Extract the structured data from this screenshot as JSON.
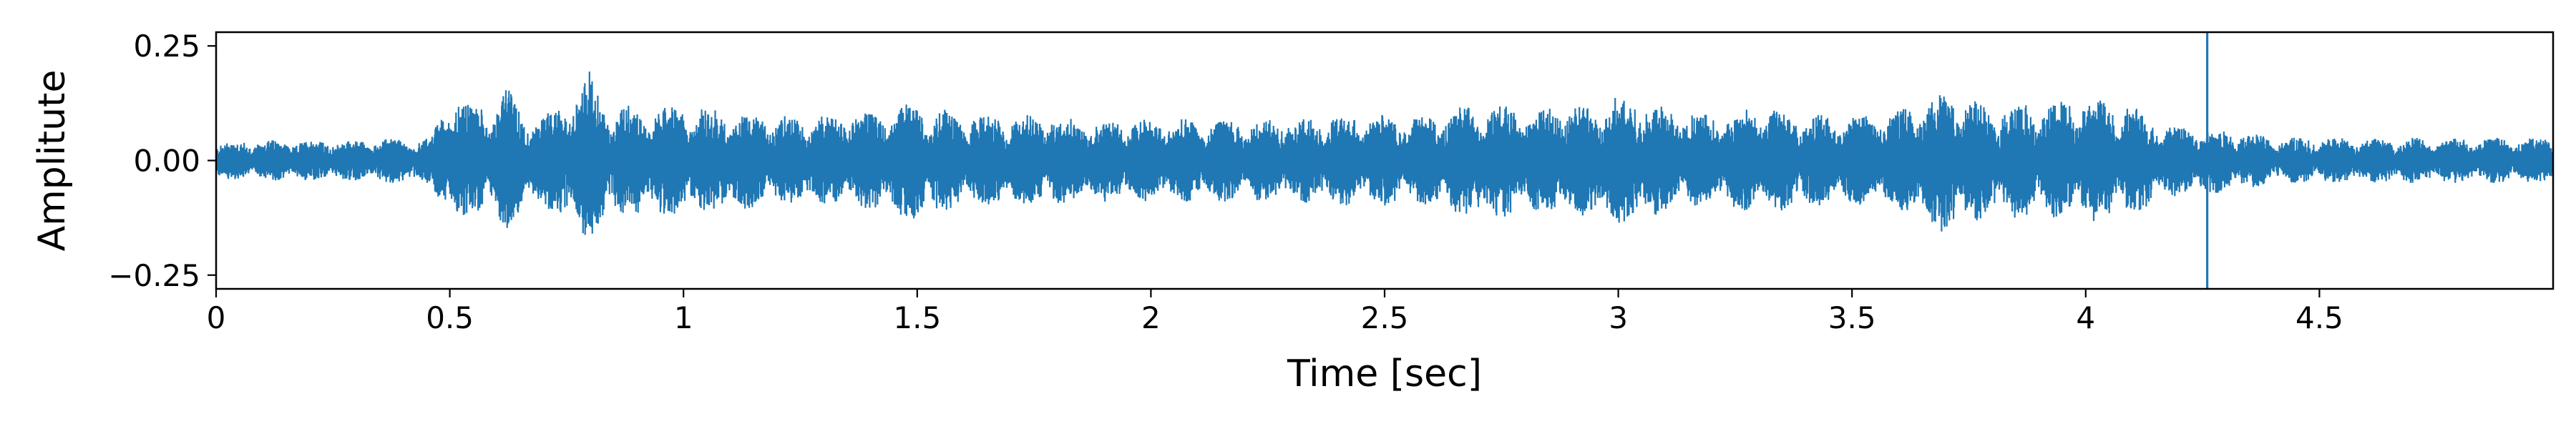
{
  "chart_data": {
    "type": "line",
    "xlabel": "Time [sec]",
    "ylabel": "Amplitute",
    "xlim": [
      0,
      5.0
    ],
    "ylim": [
      -0.28,
      0.28
    ],
    "x_ticks": [
      {
        "value": 0,
        "label": "0"
      },
      {
        "value": 0.5,
        "label": "0.5"
      },
      {
        "value": 1,
        "label": "1"
      },
      {
        "value": 1.5,
        "label": "1.5"
      },
      {
        "value": 2,
        "label": "2"
      },
      {
        "value": 2.5,
        "label": "2.5"
      },
      {
        "value": 3,
        "label": "3"
      },
      {
        "value": 3.5,
        "label": "3.5"
      },
      {
        "value": 4,
        "label": "4"
      },
      {
        "value": 4.5,
        "label": "4.5"
      }
    ],
    "y_ticks": [
      {
        "value": 0.25,
        "label": "0.25"
      },
      {
        "value": 0.0,
        "label": "0.00"
      },
      {
        "value": -0.25,
        "label": "−0.25"
      }
    ],
    "grid": false,
    "line_color": "#1f77b4",
    "series": [
      {
        "envelope": {
          "t": [
            0,
            0.1,
            0.2,
            0.3,
            0.4,
            0.46,
            0.48,
            0.5,
            0.55,
            0.6,
            0.62,
            0.65,
            0.7,
            0.75,
            0.8,
            0.81,
            0.85,
            0.9,
            1.0,
            1.1,
            1.2,
            1.3,
            1.4,
            1.5,
            1.6,
            1.7,
            1.8,
            1.9,
            2.0,
            2.1,
            2.2,
            2.3,
            2.4,
            2.5,
            2.6,
            2.7,
            2.8,
            2.9,
            3.0,
            3.1,
            3.2,
            3.3,
            3.4,
            3.5,
            3.6,
            3.7,
            3.8,
            3.9,
            4.0,
            4.1,
            4.14,
            4.16,
            4.2,
            4.3,
            4.4,
            4.5,
            4.6,
            4.7,
            4.8,
            4.9,
            5.0
          ],
          "amp": [
            0.04,
            0.045,
            0.045,
            0.045,
            0.05,
            0.05,
            0.1,
            0.15,
            0.12,
            0.13,
            0.17,
            0.11,
            0.1,
            0.13,
            0.2,
            0.16,
            0.13,
            0.12,
            0.12,
            0.11,
            0.1,
            0.1,
            0.11,
            0.13,
            0.1,
            0.1,
            0.1,
            0.09,
            0.09,
            0.09,
            0.09,
            0.09,
            0.1,
            0.1,
            0.1,
            0.13,
            0.12,
            0.12,
            0.14,
            0.12,
            0.1,
            0.12,
            0.1,
            0.1,
            0.11,
            0.16,
            0.12,
            0.13,
            0.14,
            0.12,
            0.1,
            0.08,
            0.08,
            0.07,
            0.05,
            0.05,
            0.05,
            0.05,
            0.05,
            0.05,
            0.05
          ]
        },
        "spike": {
          "x": 4.26,
          "y_top": 0.28,
          "y_bottom": -0.28
        }
      }
    ]
  }
}
